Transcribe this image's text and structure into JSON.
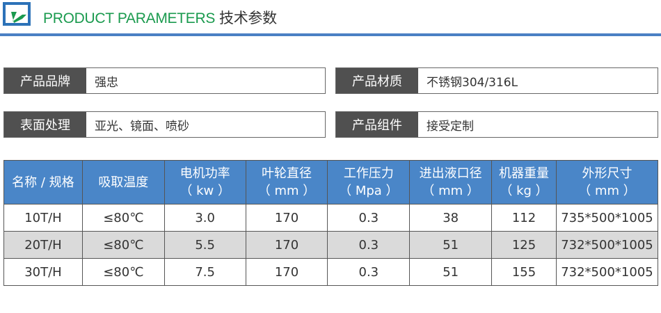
{
  "header": {
    "title_en": "PRODUCT PARAMETERS",
    "title_cn": "技术参数",
    "accent": "#1a9a4e",
    "rule_color": "#4a80c4"
  },
  "info": [
    {
      "label": "产品品牌",
      "value": "强忠"
    },
    {
      "label": "产品材质",
      "value": "不锈钢304/316L"
    },
    {
      "label": "表面处理",
      "value": "亚光、镜面、喷砂"
    },
    {
      "label": "产品组件",
      "value": "接受定制"
    }
  ],
  "table": {
    "header_color": "#4a86c8",
    "columns": [
      {
        "name": "名称 / 规格",
        "unit": ""
      },
      {
        "name": "吸取温度",
        "unit": ""
      },
      {
        "name": "电机功率",
        "unit": "（ kw ）"
      },
      {
        "name": "叶轮直径",
        "unit": "（ mm ）"
      },
      {
        "name": "工作压力",
        "unit": "（ Mpa ）"
      },
      {
        "name": "进出液口径",
        "unit": "（ mm ）"
      },
      {
        "name": "机器重量",
        "unit": "（ kg ）"
      },
      {
        "name": "外形尺寸",
        "unit": "（ mm ）"
      }
    ],
    "rows": [
      [
        "10T/H",
        "≤80℃",
        "3.0",
        "170",
        "0.3",
        "38",
        "112",
        "735*500*1005"
      ],
      [
        "20T/H",
        "≤80℃",
        "5.5",
        "170",
        "0.3",
        "51",
        "125",
        "732*500*1005"
      ],
      [
        "30T/H",
        "≤80℃",
        "7.5",
        "170",
        "0.3",
        "51",
        "155",
        "732*500*1005"
      ]
    ]
  }
}
